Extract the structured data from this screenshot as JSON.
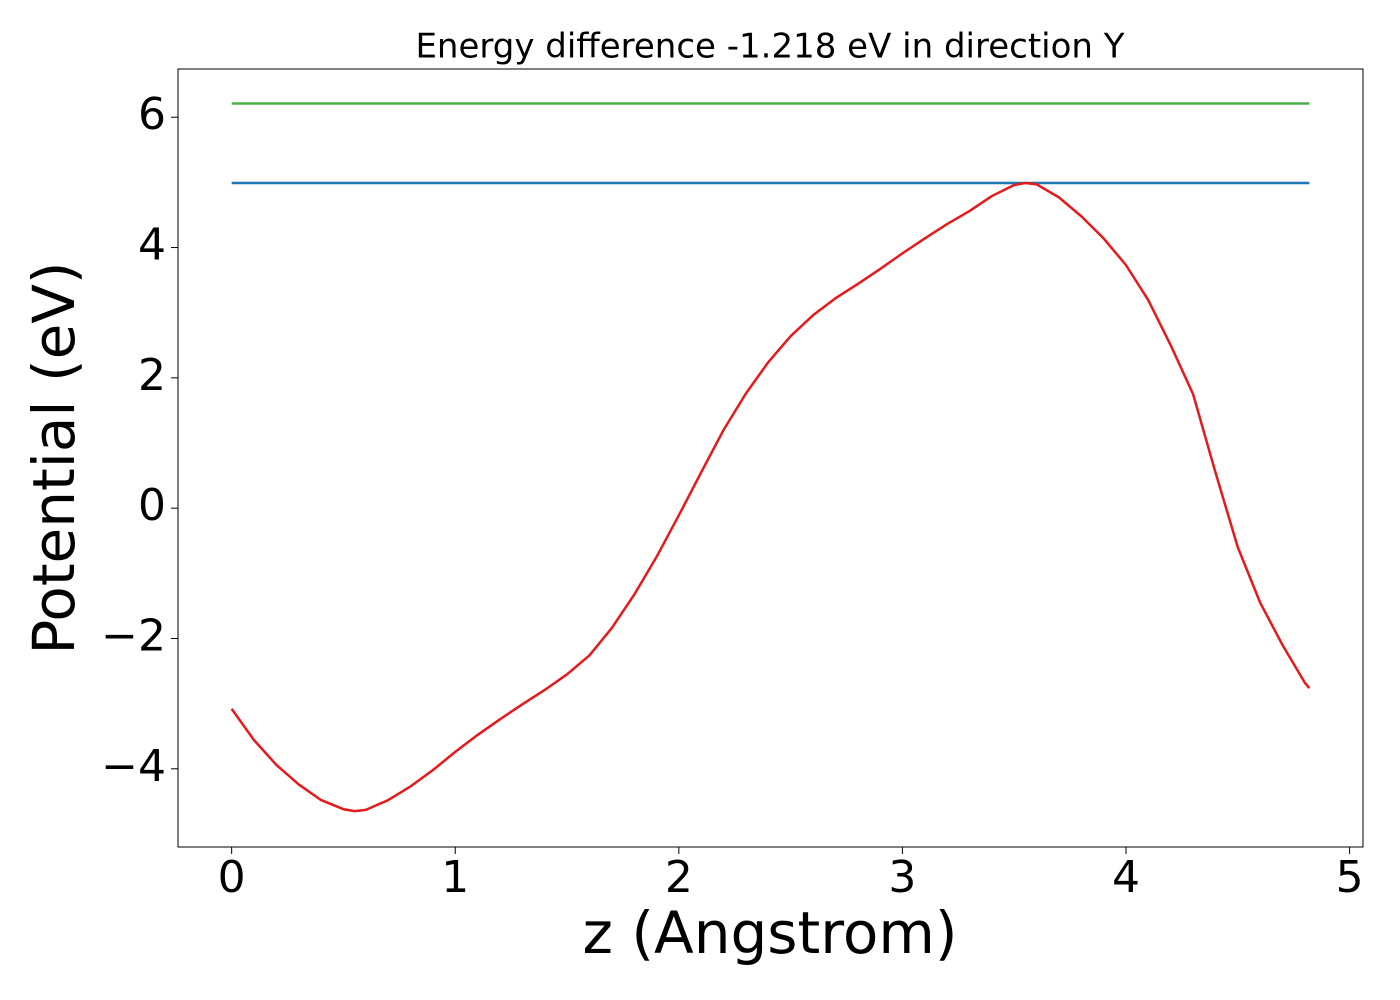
{
  "chart_data": {
    "type": "line",
    "title": "Energy difference -1.218 eV in direction Y",
    "xlabel": "z (Angstrom)",
    "ylabel": "Potential (eV)",
    "xlim": [
      -0.24,
      5.06
    ],
    "ylim": [
      -5.2,
      6.74
    ],
    "xticks": [
      0,
      1,
      2,
      3,
      4,
      5
    ],
    "yticks": [
      {
        "value": -4,
        "label": "−4"
      },
      {
        "value": -2,
        "label": "−2"
      },
      0,
      2,
      4,
      6
    ],
    "series": [
      {
        "color": "#4daf4a",
        "x": [
          0,
          4.82
        ],
        "values": [
          6.21,
          6.21
        ]
      },
      {
        "color": "#1f77b4",
        "x": [
          0,
          4.82
        ],
        "values": [
          4.99,
          4.99
        ]
      },
      {
        "color": "#e41a1c",
        "x": [
          0,
          0.1,
          0.2,
          0.3,
          0.4,
          0.5,
          0.55,
          0.6,
          0.7,
          0.8,
          0.9,
          1.0,
          1.1,
          1.2,
          1.3,
          1.4,
          1.5,
          1.6,
          1.7,
          1.8,
          1.9,
          2.0,
          2.1,
          2.2,
          2.3,
          2.4,
          2.5,
          2.6,
          2.7,
          2.8,
          2.9,
          3.0,
          3.1,
          3.2,
          3.3,
          3.4,
          3.5,
          3.55,
          3.6,
          3.7,
          3.8,
          3.9,
          4.0,
          4.1,
          4.2,
          4.3,
          4.4,
          4.5,
          4.6,
          4.7,
          4.8,
          4.82
        ],
        "values": [
          -3.08,
          -3.56,
          -3.94,
          -4.24,
          -4.48,
          -4.62,
          -4.65,
          -4.63,
          -4.48,
          -4.27,
          -4.02,
          -3.74,
          -3.48,
          -3.24,
          -3.01,
          -2.79,
          -2.55,
          -2.26,
          -1.84,
          -1.33,
          -0.75,
          -0.11,
          0.55,
          1.2,
          1.76,
          2.24,
          2.64,
          2.96,
          3.22,
          3.44,
          3.67,
          3.91,
          4.14,
          4.36,
          4.56,
          4.79,
          4.96,
          4.99,
          4.97,
          4.77,
          4.48,
          4.14,
          3.73,
          3.19,
          2.5,
          1.75,
          0.55,
          -0.6,
          -1.45,
          -2.1,
          -2.68,
          -2.76
        ]
      }
    ]
  }
}
